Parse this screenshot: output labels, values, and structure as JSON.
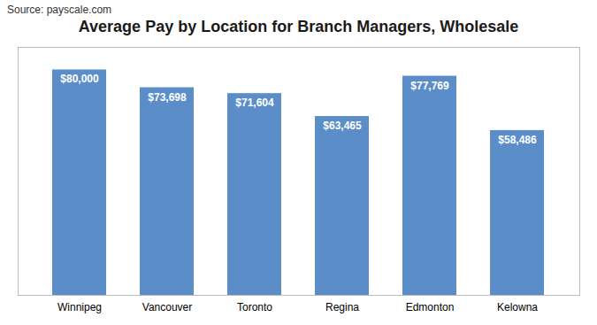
{
  "chart_data": {
    "type": "bar",
    "title": "Average Pay by Location for Branch Managers, Wholesale",
    "annotations": [
      "Source: payscale.com"
    ],
    "categories": [
      "Winnipeg",
      "Vancouver",
      "Toronto",
      "Regina",
      "Edmonton",
      "Kelowna"
    ],
    "values": [
      80000,
      73698,
      71604,
      63465,
      77769,
      58486
    ],
    "value_labels": [
      "$80,000",
      "$73,698",
      "$71,604",
      "$63,465",
      "$77,769",
      "$58,486"
    ],
    "color": "#5B8EC8",
    "ylim": [
      0,
      88000
    ],
    "data_labels": true,
    "tick_labels": "x",
    "grid": false
  }
}
